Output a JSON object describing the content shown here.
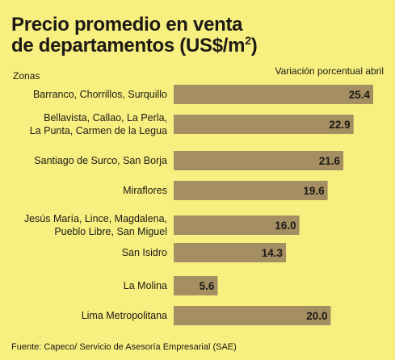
{
  "title_line1": "Precio promedio en venta",
  "title_line2": "de departamentos (US$/m",
  "title_sup": "2",
  "title_close": ")",
  "zonas_label": "Zonas",
  "variacion_label": "Variación porcentual abril",
  "source": "Fuente: Capeco/ Servicio de Asesoría Empresarial (SAE)",
  "colors": {
    "background": "#f7ef7f",
    "bar": "#a48e62",
    "text": "#1d1a16"
  },
  "chart_data": {
    "type": "bar",
    "orientation": "horizontal",
    "title": "Precio promedio en venta de departamentos (US$/m2)",
    "xlabel": "Variación porcentual abril",
    "ylabel": "Zonas",
    "xlim": [
      0,
      25.4
    ],
    "categories": [
      [
        "Barranco, Chorrillos, Surquillo"
      ],
      [
        "Bellavista, Callao, La Perla,",
        "La Punta, Carmen de la Legua"
      ],
      [
        "Santiago de Surco, San Borja"
      ],
      [
        "Miraflores"
      ],
      [
        "Jesús María, Lince, Magdalena,",
        "Pueblo Libre, San Miguel"
      ],
      [
        "San Isidro"
      ],
      [
        "La Molina"
      ],
      [
        "Lima Metropolitana"
      ]
    ],
    "values": [
      25.4,
      22.9,
      21.6,
      19.6,
      16.0,
      14.3,
      5.6,
      20.0
    ],
    "value_labels": [
      "25.4",
      "22.9",
      "21.6",
      "19.6",
      "16.0",
      "14.3",
      "5.6",
      "20.0"
    ]
  }
}
